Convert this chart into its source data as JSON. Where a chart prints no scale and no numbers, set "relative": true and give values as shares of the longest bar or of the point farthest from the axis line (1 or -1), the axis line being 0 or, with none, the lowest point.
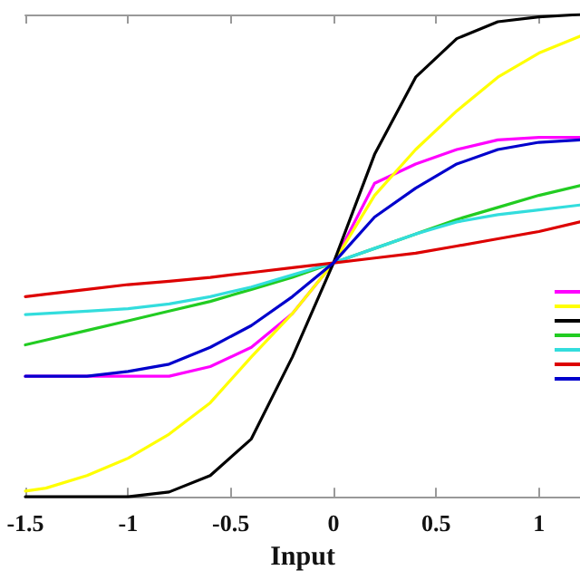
{
  "chart_data": {
    "type": "line",
    "xlabel": "Input",
    "relative": true,
    "x": [
      -1.5,
      -1.4,
      -1.2,
      -1.0,
      -0.8,
      -0.6,
      -0.4,
      -0.2,
      0,
      0.2,
      0.4,
      0.6,
      0.8,
      1.0,
      1.2
    ],
    "xlim": [
      -1.5,
      1.2
    ],
    "xticks": [
      -1.5,
      -1,
      -0.5,
      0,
      0.5,
      1
    ],
    "grid": false,
    "marker": "none",
    "line_style": "solid",
    "series": [
      {
        "color": "#ff00ff",
        "values": [
          0.25,
          0.25,
          0.25,
          0.25,
          0.25,
          0.27,
          0.31,
          0.38,
          0.485,
          0.65,
          0.69,
          0.72,
          0.74,
          0.745,
          0.745
        ]
      },
      {
        "color": "#ffff00",
        "values": [
          0.012,
          0.018,
          0.044,
          0.08,
          0.13,
          0.195,
          0.29,
          0.38,
          0.485,
          0.625,
          0.72,
          0.8,
          0.87,
          0.92,
          0.955
        ]
      },
      {
        "color": "#000000",
        "values": [
          0,
          0,
          0,
          0,
          0.01,
          0.044,
          0.12,
          0.29,
          0.485,
          0.71,
          0.87,
          0.95,
          0.985,
          0.995,
          1
        ]
      },
      {
        "color": "#22cc22",
        "values": [
          0.315,
          0.325,
          0.345,
          0.365,
          0.385,
          0.405,
          0.43,
          0.455,
          0.485,
          0.515,
          0.545,
          0.575,
          0.6,
          0.625,
          0.645
        ]
      },
      {
        "color": "#33dddd",
        "values": [
          0.378,
          0.38,
          0.385,
          0.39,
          0.4,
          0.415,
          0.435,
          0.46,
          0.485,
          0.515,
          0.545,
          0.57,
          0.585,
          0.595,
          0.605
        ]
      },
      {
        "color": "#dd0000",
        "values": [
          0.415,
          0.42,
          0.43,
          0.44,
          0.447,
          0.455,
          0.465,
          0.475,
          0.485,
          0.495,
          0.505,
          0.52,
          0.535,
          0.55,
          0.57
        ]
      },
      {
        "color": "#0000cc",
        "values": [
          0.25,
          0.25,
          0.25,
          0.26,
          0.275,
          0.31,
          0.355,
          0.415,
          0.485,
          0.58,
          0.64,
          0.69,
          0.72,
          0.735,
          0.74
        ]
      }
    ]
  }
}
